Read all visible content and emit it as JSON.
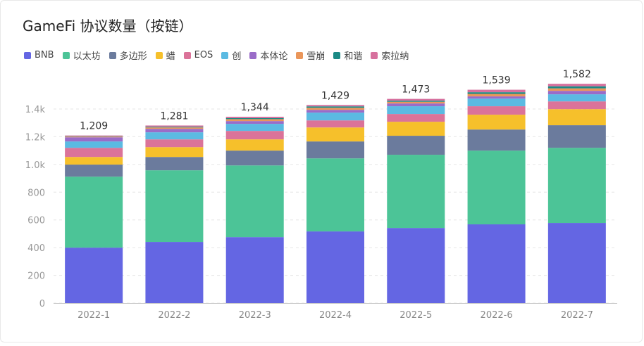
{
  "chart_data": {
    "type": "bar",
    "stacked": true,
    "title": "GameFi 协议数量（按链）",
    "categories": [
      "2022-1",
      "2022-2",
      "2022-3",
      "2022-4",
      "2022-5",
      "2022-6",
      "2022-7"
    ],
    "totals": [
      "1,209",
      "1,281",
      "1,344",
      "1,429",
      "1,473",
      "1,539",
      "1,582"
    ],
    "ylim": [
      0,
      1500
    ],
    "yticks": [
      0,
      200,
      400,
      600,
      800,
      1000,
      1200,
      1400
    ],
    "ytick_labels": [
      "0",
      "200",
      "400",
      "600",
      "800",
      "1.0k",
      "1.2k",
      "1.4k"
    ],
    "grid": true,
    "legend_position": "top-left",
    "series": [
      {
        "name": "BNB",
        "color": "#6466e3",
        "values": [
          400,
          441,
          476,
          517,
          542,
          568,
          578
        ]
      },
      {
        "name": "以太坊",
        "color": "#4cc497",
        "values": [
          512,
          517,
          517,
          527,
          528,
          532,
          542
        ]
      },
      {
        "name": "多边形",
        "color": "#6b7b9d",
        "values": [
          87,
          96,
          107,
          122,
          137,
          152,
          163
        ]
      },
      {
        "name": "蜡",
        "color": "#f6c02b",
        "values": [
          55,
          71,
          81,
          101,
          101,
          107,
          116
        ]
      },
      {
        "name": "EOS",
        "color": "#db7399",
        "values": [
          66,
          56,
          61,
          51,
          56,
          61,
          56
        ]
      },
      {
        "name": "创",
        "color": "#5bbae2",
        "values": [
          46,
          51,
          51,
          56,
          56,
          55,
          51
        ]
      },
      {
        "name": "本体论",
        "color": "#9a6cc8",
        "values": [
          30,
          25,
          20,
          20,
          20,
          16,
          25
        ]
      },
      {
        "name": "雪崩",
        "color": "#ea965a",
        "values": [
          5,
          10,
          14,
          15,
          12,
          18,
          18
        ]
      },
      {
        "name": "和谐",
        "color": "#1b8a85",
        "values": [
          3,
          5,
          7,
          10,
          8,
          12,
          15
        ]
      },
      {
        "name": "索拉纳",
        "color": "#d7719e",
        "values": [
          5,
          9,
          10,
          10,
          13,
          18,
          18
        ]
      }
    ]
  }
}
